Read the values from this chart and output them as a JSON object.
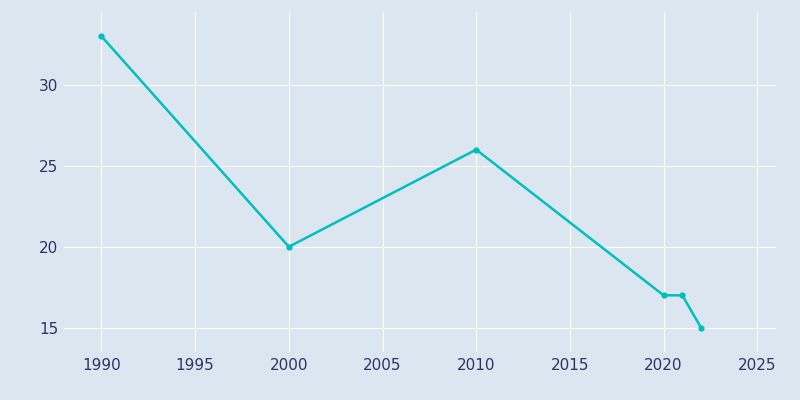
{
  "years": [
    1990,
    2000,
    2010,
    2020,
    2021,
    2022
  ],
  "population": [
    33,
    20,
    26,
    17,
    17,
    15
  ],
  "line_color": "#00BFBF",
  "line_width": 1.8,
  "marker": "o",
  "marker_size": 3.5,
  "background_color": "#dce6f0",
  "plot_bg_color": "#dce6f0",
  "xlim": [
    1988,
    2026
  ],
  "ylim": [
    13.5,
    34.5
  ],
  "xticks": [
    1990,
    1995,
    2000,
    2005,
    2010,
    2015,
    2020,
    2025
  ],
  "yticks": [
    15,
    20,
    25,
    30
  ],
  "grid_color": "#ffffff",
  "grid_linewidth": 0.8,
  "tick_color": "#2d3561"
}
